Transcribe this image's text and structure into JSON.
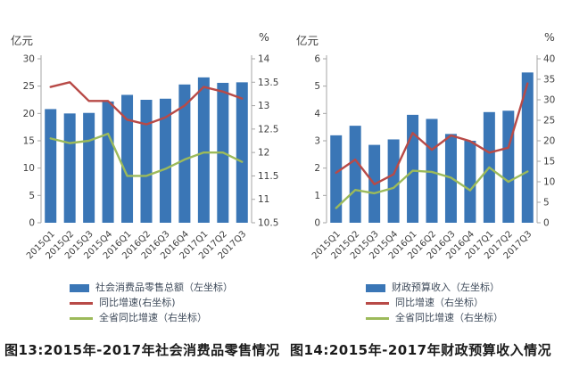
{
  "page": {
    "background": "#ffffff"
  },
  "palette": {
    "bar_blue": "#3A76B6",
    "line_red": "#B84A47",
    "line_green": "#9CBA5A",
    "axis_gray": "#A6A6A6",
    "tick_text": "#3F3F3F",
    "legend_text": "#3E4A5A"
  },
  "chart_data": [
    {
      "type": "bar",
      "subtype": "bar+line combo, dual axis",
      "caption": "图13:2015年-2017年社会消费品零售情况",
      "categories": [
        "2015Q1",
        "2015Q2",
        "2015Q3",
        "2015Q4",
        "2016Q1",
        "2016Q2",
        "2016Q3",
        "2016Q4",
        "2017Q1",
        "2017Q2",
        "2017Q3"
      ],
      "left_axis": {
        "label": "亿元",
        "min": 0,
        "max": 30,
        "step": 5
      },
      "right_axis": {
        "label": "%",
        "min": 10.5,
        "max": 14,
        "step": 0.5
      },
      "grid": false,
      "legend_position": "bottom",
      "series": [
        {
          "name": "社会消费品零售总额（左坐标）",
          "type": "bar",
          "axis": "left",
          "color": "#3A76B6",
          "values": [
            20.8,
            20.0,
            20.1,
            22.2,
            23.4,
            22.5,
            22.7,
            25.3,
            26.6,
            25.6,
            25.7
          ]
        },
        {
          "name": "同比增速(右坐标)",
          "type": "line",
          "axis": "right",
          "color": "#B84A47",
          "values": [
            13.4,
            13.5,
            13.1,
            13.1,
            12.7,
            12.6,
            12.75,
            13.0,
            13.4,
            13.3,
            13.15
          ]
        },
        {
          "name": "全省同比增速（右坐标）",
          "type": "line",
          "axis": "right",
          "color": "#9CBA5A",
          "values": [
            12.3,
            12.2,
            12.25,
            12.4,
            11.5,
            11.5,
            11.65,
            11.85,
            12.0,
            12.0,
            11.8
          ]
        }
      ]
    },
    {
      "type": "bar",
      "subtype": "bar+line combo, dual axis",
      "caption": "图14:2015年-2017年财政预算收入情况",
      "categories": [
        "2015Q1",
        "2015Q2",
        "2015Q3",
        "2015Q4",
        "2016Q1",
        "2016Q2",
        "2016Q3",
        "2016Q4",
        "2017Q1",
        "2017Q2",
        "2017Q3"
      ],
      "left_axis": {
        "label": "亿元",
        "min": 0,
        "max": 6,
        "step": 1
      },
      "right_axis": {
        "label": "%",
        "min": 0,
        "max": 40,
        "step": 5
      },
      "grid": false,
      "legend_position": "bottom",
      "series": [
        {
          "name": "财政预算收入（左坐标）",
          "type": "bar",
          "axis": "left",
          "color": "#3A76B6",
          "values": [
            3.2,
            3.55,
            2.85,
            3.05,
            3.95,
            3.8,
            3.25,
            3.0,
            4.05,
            4.1,
            5.5
          ]
        },
        {
          "name": "同比增速（右坐标）",
          "type": "line",
          "axis": "right",
          "color": "#B84A47",
          "values": [
            12.2,
            15.4,
            9.4,
            11.8,
            21.9,
            17.8,
            21.3,
            19.9,
            17.1,
            18.3,
            34.0
          ]
        },
        {
          "name": "全省同比增速（右坐标）",
          "type": "line",
          "axis": "right",
          "color": "#9CBA5A",
          "values": [
            3.6,
            8.0,
            7.2,
            8.5,
            12.7,
            12.4,
            11.0,
            7.9,
            13.5,
            10.0,
            12.5
          ]
        }
      ]
    }
  ]
}
